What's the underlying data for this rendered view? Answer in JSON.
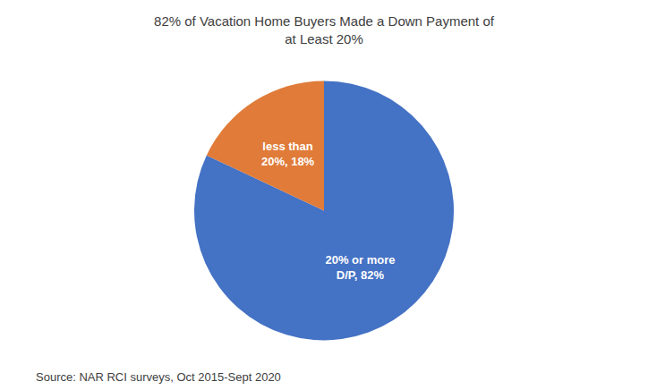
{
  "chart_data": {
    "type": "pie",
    "title": "82% of Vacation Home Buyers Made a Down Payment of\nat Least 20%",
    "values": [
      82,
      18
    ],
    "value_labels": [
      "20% or more\nD/P, 82%",
      "less than\n20%, 18%"
    ],
    "colors": [
      "#4472C4",
      "#E07B39"
    ],
    "data_labels": true,
    "annotation": "Source: NAR RCI surveys, Oct 2015-Sept 2020"
  }
}
